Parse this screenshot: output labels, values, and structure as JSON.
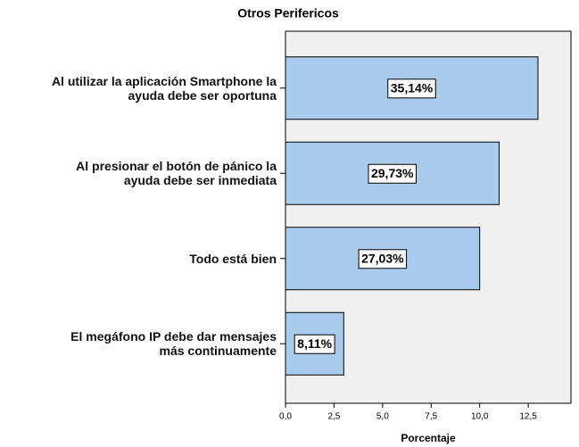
{
  "chart_data": {
    "type": "barh",
    "title": "Otros Perifericos",
    "categories": [
      "Al utilizar la aplicación Smartphone la\nayuda debe ser oportuna",
      "Al presionar el botón de pánico la\nayuda debe ser inmediata",
      "Todo está bien",
      "El megáfono IP debe dar mensajes\nmás continuamente"
    ],
    "values": [
      13,
      11,
      10,
      3
    ],
    "bar_labels": [
      "35,14%",
      "29,73%",
      "27,03%",
      "8,11%"
    ],
    "color": "#a9cbec",
    "xlabel": "Porcentaje",
    "xlim": [
      0,
      14.7
    ],
    "xticks": [
      {
        "value": 0,
        "label": "0,0"
      },
      {
        "value": 2.5,
        "label": "2,5"
      },
      {
        "value": 5,
        "label": "5,0"
      },
      {
        "value": 7.5,
        "label": "7,5"
      },
      {
        "value": 10,
        "label": "10,0"
      },
      {
        "value": 12.5,
        "label": "12,5"
      }
    ]
  }
}
